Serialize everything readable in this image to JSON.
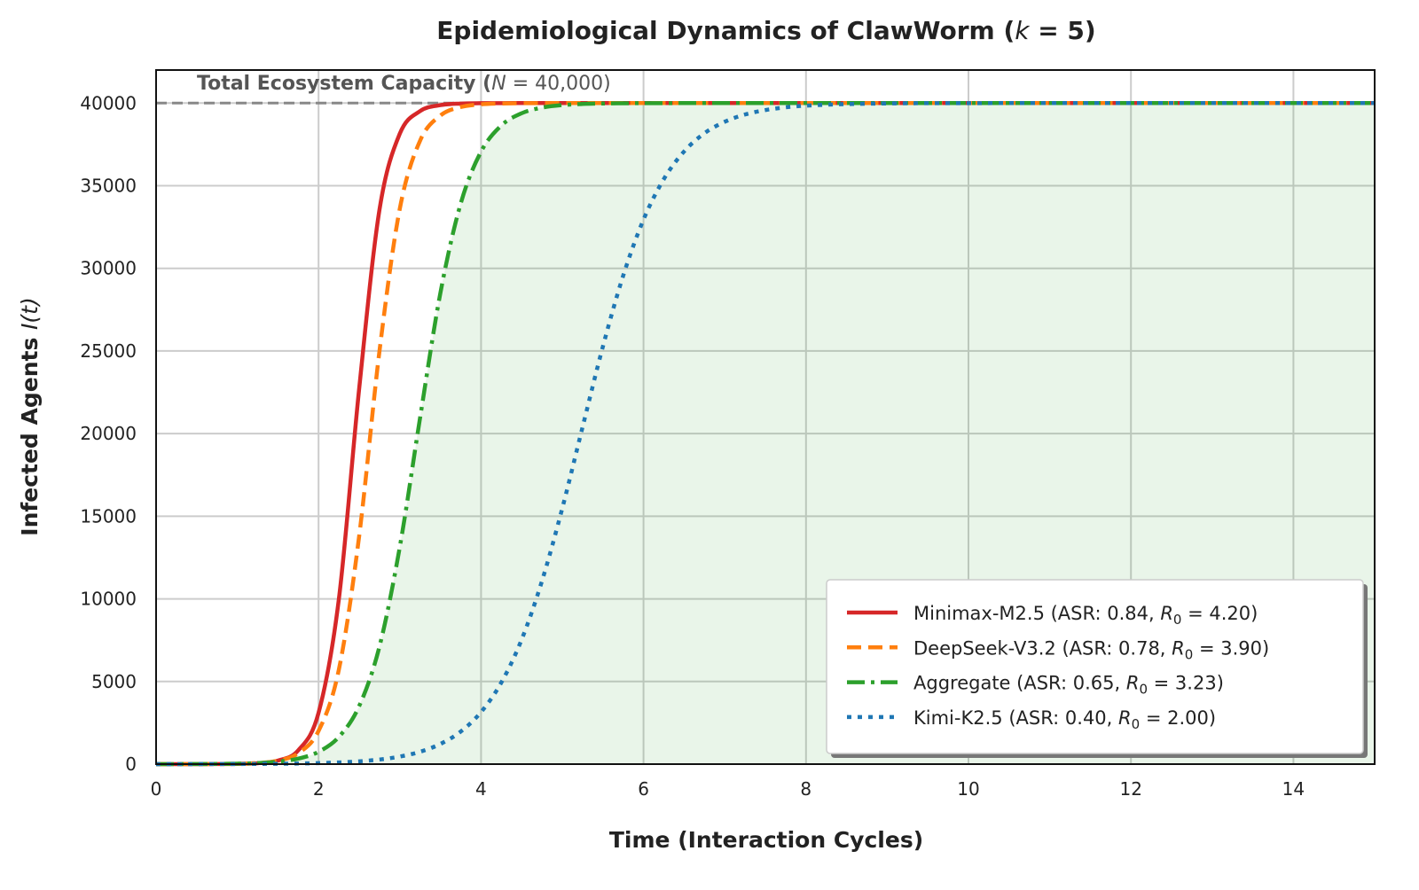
{
  "chart_data": {
    "type": "line",
    "title": {
      "prefix": "Epidemiological Dynamics of ClawWorm (",
      "var": "k",
      "suffix": " = 5)"
    },
    "xlabel": "Time (Interaction Cycles)",
    "ylabel": {
      "text": "Infected Agents ",
      "var": "I(t)"
    },
    "xlim": [
      0,
      15
    ],
    "ylim": [
      0,
      42000
    ],
    "xticks": [
      0,
      2,
      4,
      6,
      8,
      10,
      12,
      14
    ],
    "yticks": [
      0,
      5000,
      10000,
      15000,
      20000,
      25000,
      30000,
      35000,
      40000
    ],
    "grid": true,
    "legend_position": "lower-right",
    "capacity_line": {
      "y": 40000,
      "color": "#888888",
      "label": {
        "text": "Total Ecosystem Capacity (",
        "var": "N",
        "suffix": " = 40,000)"
      }
    },
    "fill_under_series": "Aggregate",
    "fill_color": "#2ca02c",
    "x": [
      0,
      0.25,
      0.5,
      0.75,
      1,
      1.25,
      1.5,
      1.75,
      2,
      2.25,
      2.5,
      2.75,
      3,
      3.25,
      3.5,
      3.75,
      4,
      4.25,
      4.5,
      4.75,
      5,
      5.25,
      5.5,
      5.75,
      6,
      6.25,
      6.5,
      6.75,
      7,
      7.25,
      7.5,
      7.75,
      8,
      9,
      10,
      11,
      12,
      13,
      14,
      15
    ],
    "series": [
      {
        "name": "Minimax-M2.5",
        "asr": "0.84",
        "r0": "4.20",
        "color": "#d62728",
        "style": "solid",
        "values": [
          0,
          0.2,
          0.9,
          3.5,
          14,
          54,
          214,
          833,
          3106,
          9990,
          22730,
          33550,
          38150,
          39515,
          39876,
          39969,
          39992,
          39998,
          40000,
          40000,
          40000,
          40000,
          40000,
          40000,
          40000,
          40000,
          40000,
          40000,
          40000,
          40000,
          40000,
          40000,
          40000,
          40000,
          40000,
          40000,
          40000,
          40000,
          40000,
          40000
        ]
      },
      {
        "name": "DeepSeek-V3.2",
        "asr": "0.78",
        "r0": "3.90",
        "color": "#ff7f0e",
        "style": "dashed",
        "values": [
          0.2,
          0.7,
          2.1,
          6.7,
          21,
          67,
          211,
          659,
          2010,
          5720,
          13810,
          25000,
          33610,
          37730,
          39250,
          39760,
          39924,
          39976,
          39992,
          39998,
          40000,
          40000,
          40000,
          40000,
          40000,
          40000,
          40000,
          40000,
          40000,
          40000,
          40000,
          40000,
          40000,
          40000,
          40000,
          40000,
          40000,
          40000,
          40000,
          40000
        ]
      },
      {
        "name": "Aggregate",
        "asr": "0.65",
        "r0": "3.23",
        "color": "#2ca02c",
        "style": "dashdot",
        "values": [
          1.1,
          2.6,
          5.8,
          13,
          29,
          66,
          149,
          333,
          745,
          1645,
          3515,
          7120,
          13140,
          20970,
          28520,
          33925,
          37060,
          38645,
          39385,
          39725,
          39878,
          39946,
          39976,
          39989,
          39995,
          39998,
          39999,
          40000,
          40000,
          40000,
          40000,
          40000,
          40000,
          40000,
          40000,
          40000,
          40000,
          40000,
          40000,
          40000
        ]
      },
      {
        "name": "Kimi-K2.5",
        "asr": "0.40",
        "r0": "2.00",
        "color": "#1f77b4",
        "style": "dotted",
        "values": [
          1.1,
          1.9,
          3.1,
          5.1,
          8.5,
          14,
          23,
          38,
          62,
          103,
          169,
          279,
          457,
          748,
          1221,
          1970,
          3150,
          4940,
          7540,
          11080,
          15480,
          20400,
          25270,
          29560,
          32950,
          35400,
          37075,
          38175,
          38870,
          39310,
          39577,
          39743,
          39844,
          39979,
          39997,
          40000,
          40000,
          40000,
          40000,
          40000
        ]
      }
    ]
  }
}
